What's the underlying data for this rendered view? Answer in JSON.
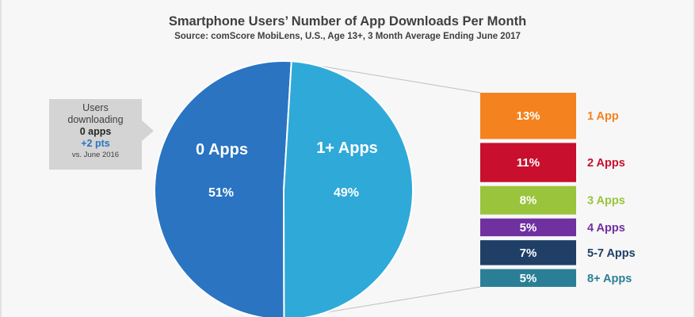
{
  "chart_data": {
    "type": "pie",
    "title": "Smartphone Users’ Number of App Downloads Per Month",
    "subtitle": "Source: comScore MobiLens, U.S., Age 13+, 3 Month Average Ending June 2017",
    "slices": [
      {
        "label": "0 Apps",
        "value": 51,
        "value_label": "51%",
        "color": "#2a74c2"
      },
      {
        "label": "1+ Apps",
        "value": 49,
        "value_label": "49%",
        "color": "#2fa9d8"
      }
    ],
    "breakdown": {
      "type": "stacked-bar",
      "of_slice": "1+ Apps",
      "items": [
        {
          "label": "1 App",
          "value": 13,
          "value_label": "13%",
          "color": "#f4821f"
        },
        {
          "label": "2 Apps",
          "value": 11,
          "value_label": "11%",
          "color": "#c8102e"
        },
        {
          "label": "3 Apps",
          "value": 8,
          "value_label": "8%",
          "color": "#9ac43c"
        },
        {
          "label": "4 Apps",
          "value": 5,
          "value_label": "5%",
          "color": "#7030a0"
        },
        {
          "label": "5-7 Apps",
          "value": 7,
          "value_label": "7%",
          "color": "#1f3f66"
        },
        {
          "label": "8+ Apps",
          "value": 5,
          "value_label": "5%",
          "color": "#2a7f96"
        }
      ]
    },
    "callout": {
      "line1": "Users",
      "line2": "downloading",
      "line3": "0 apps",
      "line4": "+2 pts",
      "line5": "vs. June 2016"
    }
  }
}
